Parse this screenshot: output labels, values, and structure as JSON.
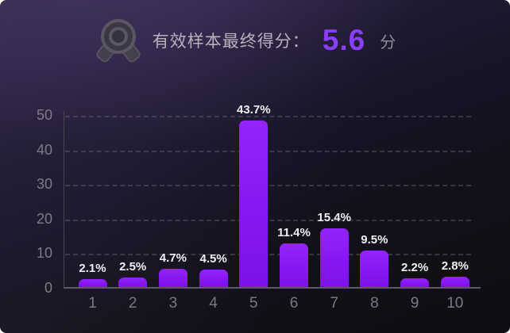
{
  "header": {
    "icon_name": "medal-icon",
    "label": "有效样本最终得分：",
    "score": "5.6",
    "unit": "分"
  },
  "colors": {
    "accent_purple": "#8a3ef8",
    "bar_fill": "#8717f2",
    "background_dark": "#131019",
    "background_light": "#2f2643",
    "grid_line": "#767080",
    "axis_line": "#5d5965",
    "tick_text": "#7b7884",
    "value_text": "#efeef2",
    "header_text": "#b6b2bc"
  },
  "chart_data": {
    "type": "bar",
    "categories": [
      "1",
      "2",
      "3",
      "4",
      "5",
      "6",
      "7",
      "8",
      "9",
      "10"
    ],
    "values": [
      2.1,
      2.5,
      4.7,
      4.5,
      43.7,
      11.4,
      15.4,
      9.5,
      2.2,
      2.8
    ],
    "value_labels": [
      "2.1%",
      "2.5%",
      "4.7%",
      "4.5%",
      "43.7%",
      "11.4%",
      "15.4%",
      "9.5%",
      "2.2%",
      "2.8%"
    ],
    "title": "",
    "xlabel": "",
    "ylabel": "",
    "yticks": [
      0,
      10,
      20,
      30,
      40,
      50
    ],
    "ylim": [
      0,
      50
    ],
    "grid": "horizontal-dashed",
    "legend": "none"
  }
}
